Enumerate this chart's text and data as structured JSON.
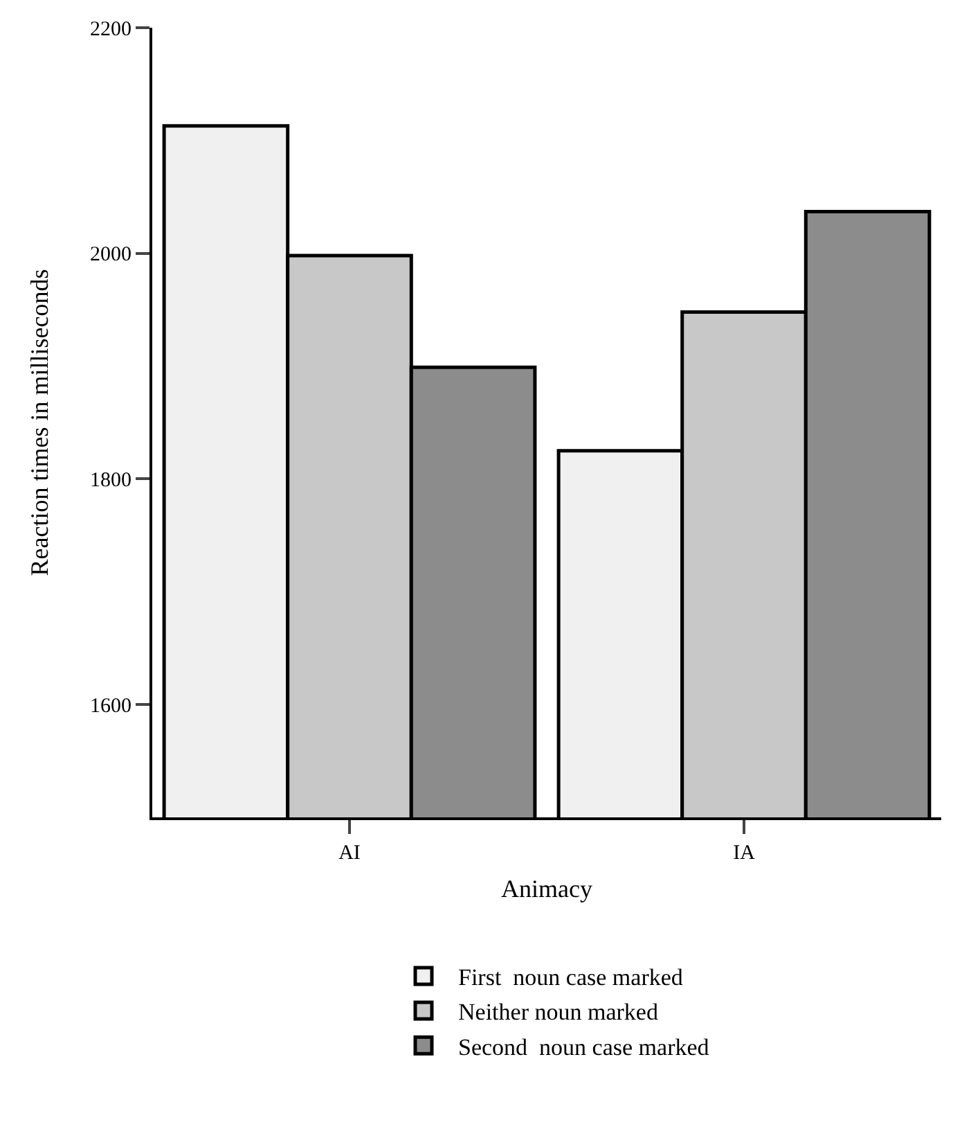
{
  "chart_data": {
    "type": "bar",
    "xlabel": "Animacy",
    "ylabel": "Reaction times in milliseconds",
    "categories": [
      "AI",
      "IA"
    ],
    "series": [
      {
        "name": "First  noun case marked",
        "color": "#f0f0f0",
        "values": [
          2113,
          1825
        ]
      },
      {
        "name": "Neither noun marked",
        "color": "#c8c8c8",
        "values": [
          1998,
          1948
        ]
      },
      {
        "name": "Second  noun case marked",
        "color": "#8c8c8c",
        "values": [
          1899,
          2037
        ]
      }
    ],
    "ylim": [
      1500,
      2200
    ],
    "yticks": [
      1600,
      1800,
      2000,
      2200
    ],
    "legend": "bottom"
  }
}
